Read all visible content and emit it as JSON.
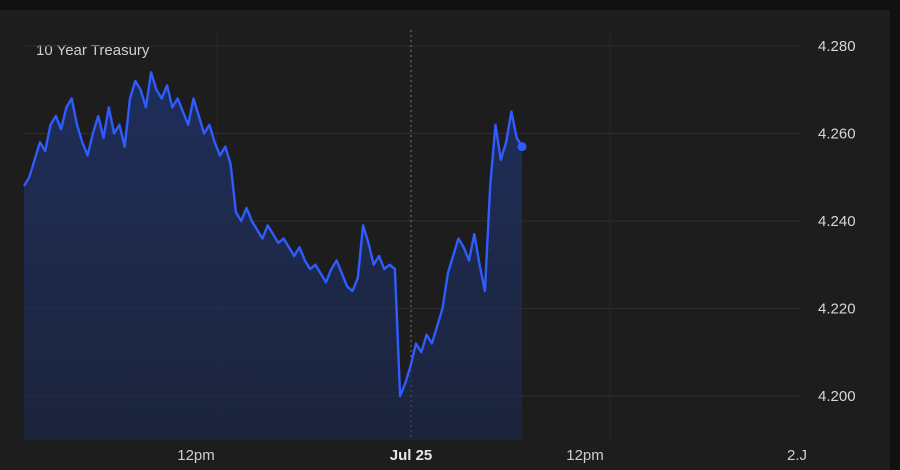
{
  "chart_data": {
    "type": "area",
    "title": "10 Year Treasury",
    "y_ticks": [
      "4.280",
      "4.260",
      "4.240",
      "4.220",
      "4.200"
    ],
    "x_ticks": [
      "12pm",
      "Jul 25",
      "12pm",
      "2.J"
    ],
    "ylim": [
      4.195,
      4.282
    ],
    "grid": true,
    "colors": {
      "line": "#2f5cff",
      "fill_top": "#1c2a55",
      "grid": "#2e2e2e",
      "background": "#1d1d1d"
    },
    "series": [
      {
        "values": [
          4.248,
          4.25,
          4.254,
          4.258,
          4.256,
          4.262,
          4.264,
          4.261,
          4.266,
          4.268,
          4.262,
          4.258,
          4.255,
          4.26,
          4.264,
          4.259,
          4.266,
          4.26,
          4.262,
          4.257,
          4.268,
          4.272,
          4.27,
          4.266,
          4.274,
          4.27,
          4.268,
          4.271,
          4.266,
          4.268,
          4.265,
          4.262,
          4.268,
          4.264,
          4.26,
          4.262,
          4.258,
          4.255,
          4.257,
          4.253,
          4.242,
          4.24,
          4.243,
          4.24,
          4.238,
          4.236,
          4.239,
          4.237,
          4.235,
          4.236,
          4.234,
          4.232,
          4.234,
          4.231,
          4.229,
          4.23,
          4.228,
          4.226,
          4.229,
          4.231,
          4.228,
          4.225,
          4.224,
          4.227,
          4.239,
          4.235,
          4.23,
          4.232,
          4.229,
          4.23,
          4.229,
          4.2,
          4.203,
          4.207,
          4.212,
          4.21,
          4.214,
          4.212,
          4.216,
          4.22,
          4.228,
          4.232,
          4.236,
          4.234,
          4.231,
          4.237,
          4.23,
          4.224,
          4.248,
          4.262,
          4.254,
          4.258,
          4.265,
          4.259,
          4.257
        ]
      }
    ]
  }
}
